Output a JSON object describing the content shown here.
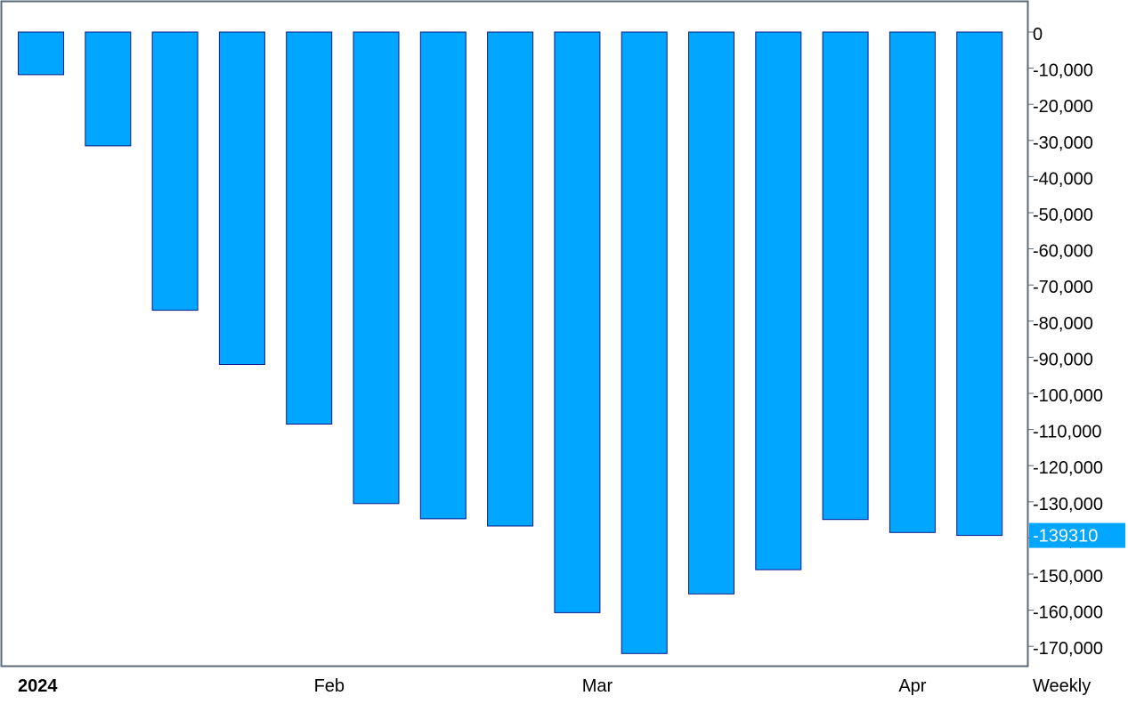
{
  "chart_data": {
    "type": "bar",
    "title": "",
    "xlabel": "",
    "ylabel": "",
    "ylim": [
      -175000,
      5000
    ],
    "y_ticks": [
      0,
      -10000,
      -20000,
      -30000,
      -40000,
      -50000,
      -60000,
      -70000,
      -80000,
      -90000,
      -100000,
      -110000,
      -120000,
      -130000,
      -140000,
      -150000,
      -160000,
      -170000
    ],
    "y_tick_labels": [
      "0",
      "-10,000",
      "-20,000",
      "-30,000",
      "-40,000",
      "-50,000",
      "-60,000",
      "-70,000",
      "-80,000",
      "-90,000",
      "-100,000",
      "-110,000",
      "-120,000",
      "-130,000",
      "-140,000",
      "-150,000",
      "-160,000",
      "-170,000"
    ],
    "categories": [
      "2024-01-02",
      "2024-01-09",
      "2024-01-16",
      "2024-01-23",
      "2024-01-30",
      "2024-02-06",
      "2024-02-13",
      "2024-02-20",
      "2024-02-27",
      "2024-03-05",
      "2024-03-12",
      "2024-03-19",
      "2024-03-26",
      "2024-04-02",
      "2024-04-09"
    ],
    "values": [
      -11800,
      -31500,
      -77000,
      -92000,
      -108500,
      -130500,
      -134700,
      -136700,
      -160700,
      -172000,
      -155500,
      -148800,
      -134900,
      -138500,
      -139310
    ],
    "x_labels": [
      {
        "text": "2024",
        "category_index": 0,
        "bold": true
      },
      {
        "text": "Feb",
        "category_index": 4.3,
        "bold": false
      },
      {
        "text": "Mar",
        "category_index": 8.3,
        "bold": false
      },
      {
        "text": "Apr",
        "category_index": 13.0,
        "bold": false
      }
    ],
    "frequency_label": "Weekly",
    "last_value_label": "-139310",
    "grid": false,
    "colors": {
      "bar_fill": "#00a6ff",
      "bar_stroke": "#0a1a8a",
      "frame": "#5a6a78",
      "last_value_bg": "#00a6ff"
    }
  }
}
